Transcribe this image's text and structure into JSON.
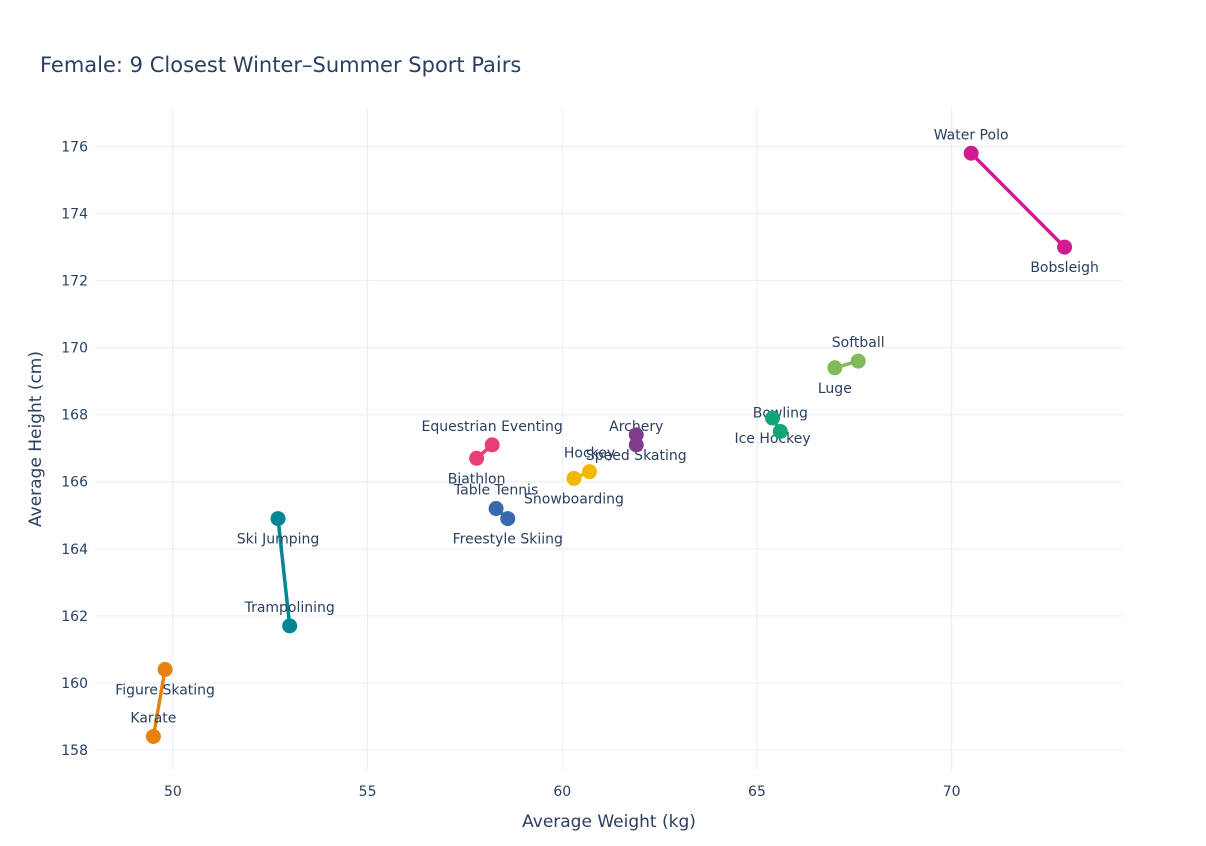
{
  "title": {
    "text": "Female: 9 Closest Winter–Summer Sport Pairs"
  },
  "axes": {
    "x_title": "Average Weight (kg)",
    "y_title": "Average Height (cm)"
  },
  "style": {
    "text_color": "#2a3f5f",
    "grid_color": "#e9edf5",
    "background": "#ffffff",
    "marker_diameter": 15,
    "line_width": 3.5
  },
  "chart_data": {
    "type": "scatter",
    "subtype": "dumbbell-pairs",
    "title": "Female: 9 Closest Winter–Summer Sport Pairs",
    "xlabel": "Average Weight (kg)",
    "ylabel": "Average Height (cm)",
    "xlim": [
      48.0,
      74.4
    ],
    "ylim": [
      157.4,
      177.15
    ],
    "xticks": [
      50,
      55,
      60,
      65,
      70
    ],
    "yticks": [
      158,
      160,
      162,
      164,
      166,
      168,
      170,
      172,
      174,
      176
    ],
    "grid": true,
    "legend": "none",
    "pairs": [
      {
        "name": "Archery – Speed Skating",
        "color": "#7F3C8D",
        "points": [
          {
            "label": "Archery",
            "x": 61.9,
            "y": 167.1,
            "label_position": "top"
          },
          {
            "label": "Speed Skating",
            "x": 61.9,
            "y": 167.4,
            "label_position": "bottom"
          }
        ]
      },
      {
        "name": "Bowling – Ice Hockey",
        "color": "#11A579",
        "points": [
          {
            "label": "Bowling",
            "x": 65.6,
            "y": 167.5,
            "label_position": "top"
          },
          {
            "label": "Ice Hockey",
            "x": 65.4,
            "y": 167.9,
            "label_position": "bottom"
          }
        ]
      },
      {
        "name": "Table Tennis – Freestyle Skiing",
        "color": "#3969AC",
        "points": [
          {
            "label": "Table Tennis",
            "x": 58.3,
            "y": 165.2,
            "label_position": "top"
          },
          {
            "label": "Freestyle Skiing",
            "x": 58.6,
            "y": 164.9,
            "label_position": "bottom"
          }
        ]
      },
      {
        "name": "Hockey – Snowboarding",
        "color": "#F2B701",
        "points": [
          {
            "label": "Hockey",
            "x": 60.7,
            "y": 166.3,
            "label_position": "top"
          },
          {
            "label": "Snowboarding",
            "x": 60.3,
            "y": 166.1,
            "label_position": "bottom"
          }
        ]
      },
      {
        "name": "Equestrian Eventing – Biathlon",
        "color": "#E73F74",
        "points": [
          {
            "label": "Equestrian Eventing",
            "x": 58.2,
            "y": 167.1,
            "label_position": "top"
          },
          {
            "label": "Biathlon",
            "x": 57.8,
            "y": 166.7,
            "label_position": "bottom"
          }
        ]
      },
      {
        "name": "Softball – Luge",
        "color": "#80BA5A",
        "points": [
          {
            "label": "Softball",
            "x": 67.6,
            "y": 169.6,
            "label_position": "top"
          },
          {
            "label": "Luge",
            "x": 67.0,
            "y": 169.4,
            "label_position": "bottom"
          }
        ]
      },
      {
        "name": "Karate – Figure Skating",
        "color": "#E68310",
        "points": [
          {
            "label": "Karate",
            "x": 49.5,
            "y": 158.4,
            "label_position": "top"
          },
          {
            "label": "Figure Skating",
            "x": 49.8,
            "y": 160.4,
            "label_position": "bottom"
          }
        ]
      },
      {
        "name": "Trampolining – Ski Jumping",
        "color": "#008695",
        "points": [
          {
            "label": "Trampolining",
            "x": 53.0,
            "y": 161.7,
            "label_position": "top"
          },
          {
            "label": "Ski Jumping",
            "x": 52.7,
            "y": 164.9,
            "label_position": "bottom"
          }
        ]
      },
      {
        "name": "Water Polo – Bobsleigh",
        "color": "#CF1C90",
        "points": [
          {
            "label": "Water Polo",
            "x": 70.5,
            "y": 175.8,
            "label_position": "top"
          },
          {
            "label": "Bobsleigh",
            "x": 72.9,
            "y": 173.0,
            "label_position": "bottom"
          }
        ]
      }
    ]
  }
}
